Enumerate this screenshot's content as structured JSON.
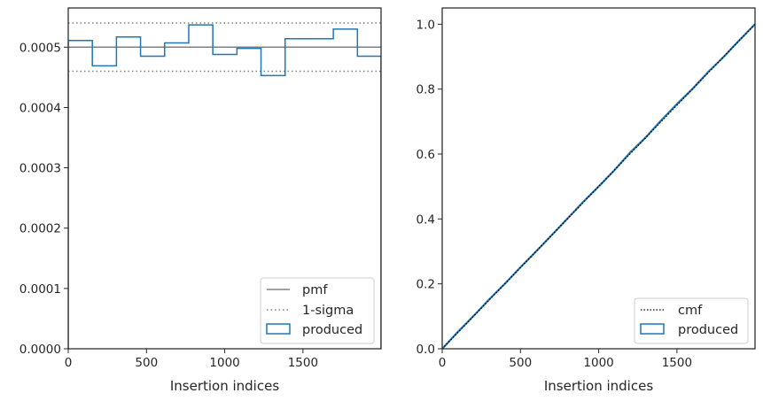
{
  "chart_data": [
    {
      "type": "step",
      "xlabel": "Insertion indices",
      "ylabel": "",
      "xlim": [
        0,
        1999
      ],
      "ylim": [
        0,
        0.000565
      ],
      "xticks": [
        0,
        500,
        1000,
        1500
      ],
      "xtick_labels": [
        "0",
        "500",
        "1000",
        "1500"
      ],
      "yticks": [
        0,
        0.0001,
        0.0002,
        0.0003,
        0.0004,
        0.0005
      ],
      "ytick_labels": [
        "0.0000",
        "0.0001",
        "0.0002",
        "0.0003",
        "0.0004",
        "0.0005"
      ],
      "grid": false,
      "legend_position": "lower-right",
      "pmf": {
        "name": "pmf",
        "value": 0.0005,
        "color": "#808080"
      },
      "sigma": {
        "name": "1-sigma",
        "values": [
          0.00046,
          0.00054
        ],
        "color": "#808080"
      },
      "histogram": {
        "name": "produced",
        "color": "#1f77b4",
        "bin_edges": [
          0,
          154,
          308,
          462,
          616,
          770,
          924,
          1078,
          1232,
          1386,
          1540,
          1694,
          1848,
          1999
        ],
        "values": [
          0.000511,
          0.000469,
          0.000517,
          0.000485,
          0.000507,
          0.000537,
          0.000488,
          0.000498,
          0.000453,
          0.000514,
          0.000514,
          0.00053,
          0.000485
        ]
      }
    },
    {
      "type": "line",
      "xlabel": "Insertion indices",
      "ylabel": "",
      "xlim": [
        0,
        1999
      ],
      "ylim": [
        0,
        1.05
      ],
      "xticks": [
        0,
        500,
        1000,
        1500
      ],
      "xtick_labels": [
        "0",
        "500",
        "1000",
        "1500"
      ],
      "yticks": [
        0,
        0.2,
        0.4,
        0.6,
        0.8,
        1.0
      ],
      "ytick_labels": [
        "0.0",
        "0.2",
        "0.4",
        "0.6",
        "0.8",
        "1.0"
      ],
      "grid": false,
      "legend_position": "lower-right",
      "cmf": {
        "name": "cmf",
        "x": [
          0,
          1999
        ],
        "y": [
          0,
          1.0
        ],
        "color": "#000000"
      },
      "produced": {
        "name": "produced",
        "color": "#1f77b4",
        "x": [
          0,
          100,
          200,
          300,
          400,
          500,
          600,
          700,
          800,
          900,
          1000,
          1100,
          1200,
          1300,
          1400,
          1500,
          1600,
          1700,
          1800,
          1900,
          1999
        ],
        "y": [
          0,
          0.052,
          0.101,
          0.152,
          0.2,
          0.251,
          0.3,
          0.35,
          0.401,
          0.452,
          0.5,
          0.55,
          0.604,
          0.651,
          0.704,
          0.754,
          0.801,
          0.853,
          0.9,
          0.951,
          1.0
        ]
      }
    }
  ]
}
